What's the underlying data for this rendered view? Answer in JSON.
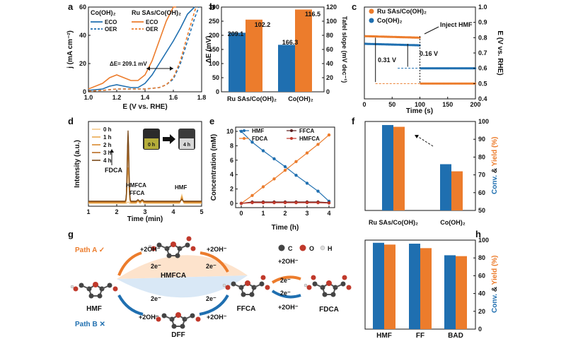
{
  "colors": {
    "blue": "#1f6fb0",
    "orange": "#ec7c2c",
    "red": "#c0392b",
    "dark": "#5a1f1f",
    "brown1": "#f3c98a",
    "brown2": "#e9a94f",
    "brown3": "#d8892f",
    "brown4": "#b86b22",
    "brown5": "#7a4a1a"
  },
  "panels": {
    "a": "a",
    "b": "b",
    "c": "c",
    "d": "d",
    "e": "e",
    "f": "f",
    "g": "g",
    "h": "h"
  },
  "chart_data": [
    {
      "id": "a",
      "type": "line",
      "xlabel": "E (V vs. RHE)",
      "ylabel": "j (mA cm⁻²)",
      "xlim": [
        1.0,
        1.8
      ],
      "ylim": [
        0,
        60
      ],
      "xticks": [
        "1.0",
        "1.2",
        "1.4",
        "1.6",
        "1.8"
      ],
      "yticks": [
        "0",
        "20",
        "40",
        "60"
      ],
      "legend_titles": [
        "Co(OH)₂",
        "Ru SAs/Co(OH)₂"
      ],
      "legend_labels": [
        "ECO",
        "OER",
        "ECO",
        "OER"
      ],
      "annotation": "ΔE= 209.1 mV",
      "series": [
        {
          "name": "Co(OH)₂ ECO",
          "x": [
            1.0,
            1.1,
            1.15,
            1.2,
            1.25,
            1.3,
            1.35,
            1.4,
            1.45,
            1.5,
            1.55,
            1.6,
            1.65,
            1.7,
            1.75
          ],
          "y": [
            1,
            2,
            4,
            5,
            4,
            3,
            3,
            6,
            12,
            20,
            28,
            36,
            45,
            55,
            62
          ]
        },
        {
          "name": "Co(OH)₂ OER",
          "x": [
            1.0,
            1.1,
            1.2,
            1.3,
            1.4,
            1.45,
            1.5,
            1.55,
            1.6,
            1.65,
            1.7,
            1.75,
            1.78
          ],
          "y": [
            0.5,
            1,
            2,
            2,
            2,
            2.5,
            3,
            5,
            9,
            20,
            36,
            52,
            60
          ]
        },
        {
          "name": "Ru SAs/Co(OH)₂ ECO",
          "x": [
            1.0,
            1.1,
            1.15,
            1.2,
            1.25,
            1.3,
            1.35,
            1.4,
            1.45,
            1.5,
            1.55,
            1.6,
            1.62
          ],
          "y": [
            2,
            6,
            10,
            12,
            10,
            8,
            8,
            12,
            22,
            36,
            50,
            60,
            62
          ]
        },
        {
          "name": "Ru SAs/Co(OH)₂ OER",
          "x": [
            1.0,
            1.1,
            1.2,
            1.3,
            1.4,
            1.45,
            1.5,
            1.55,
            1.6,
            1.65,
            1.7,
            1.76
          ],
          "y": [
            0.5,
            1,
            2,
            2,
            2,
            2.5,
            3,
            5,
            10,
            22,
            40,
            60
          ]
        }
      ]
    },
    {
      "id": "b",
      "type": "bar",
      "ylabel": "ΔE (mV)",
      "y2label": "Tafel slope (mV dec⁻¹)",
      "categories": [
        "Ru SAs/Co(OH)₂",
        "Co(OH)₂"
      ],
      "delta_e": [
        209.1,
        166.3
      ],
      "tafel": [
        102.2,
        116.5
      ],
      "delta_e_labels": [
        "209.1",
        "166.3"
      ],
      "tafel_labels": [
        "102.2",
        "116.5"
      ],
      "ylim": [
        0,
        300
      ],
      "y2lim": [
        0,
        120
      ],
      "yticks": [
        "0",
        "50",
        "100",
        "150",
        "200",
        "250",
        "300"
      ],
      "y2ticks": [
        "0",
        "20",
        "40",
        "60",
        "80",
        "100",
        "120"
      ]
    },
    {
      "id": "c",
      "type": "scatter",
      "xlabel": "Time (s)",
      "ylabel": "E (V vs. RHE)",
      "xlim": [
        0,
        200
      ],
      "ylim": [
        0.4,
        1.0
      ],
      "xticks": [
        "0",
        "50",
        "100",
        "150",
        "200"
      ],
      "yticks": [
        "0.4",
        "0.5",
        "0.6",
        "0.7",
        "0.8",
        "0.9",
        "1.0"
      ],
      "legend": [
        "Ru SAs/Co(OH)₂",
        "Co(OH)₂"
      ],
      "annotations": [
        "Inject HMF",
        "0.31 V",
        "0.16 V"
      ],
      "series": [
        {
          "name": "Ru SAs/Co(OH)₂",
          "before": 0.81,
          "after": 0.5
        },
        {
          "name": "Co(OH)₂",
          "before": 0.76,
          "after": 0.6
        }
      ],
      "inject_time": 100
    },
    {
      "id": "d",
      "type": "line",
      "xlabel": "Time (min)",
      "ylabel": "Intensity (a.u.)",
      "xlim": [
        1,
        5
      ],
      "xticks": [
        "1",
        "2",
        "3",
        "4",
        "5"
      ],
      "legend": [
        "0 h",
        "1 h",
        "2 h",
        "3 h",
        "4 h"
      ],
      "annotations": [
        "FDCA",
        "HMFCA",
        "FFCA",
        "HMF"
      ],
      "vial_labels": [
        "0 h",
        "4 h"
      ],
      "peaks": {
        "FDCA": 2.4,
        "HMFCA": 2.75,
        "FFCA": 2.9,
        "HMF": 4.3
      }
    },
    {
      "id": "e",
      "type": "line",
      "xlabel": "Time (h)",
      "ylabel": "Concentration (mM)",
      "xlim": [
        0,
        4
      ],
      "ylim": [
        0,
        10
      ],
      "xticks": [
        "0",
        "1",
        "2",
        "3",
        "4"
      ],
      "yticks": [
        "0",
        "2",
        "4",
        "6",
        "8",
        "10"
      ],
      "x": [
        0,
        0.5,
        1,
        1.5,
        2,
        2.5,
        3,
        3.5,
        4
      ],
      "series": [
        {
          "name": "HMF",
          "values": [
            10,
            8.5,
            7.3,
            6.2,
            5.1,
            3.9,
            2.8,
            1.7,
            0.3
          ]
        },
        {
          "name": "FDCA",
          "values": [
            0,
            1.1,
            2.3,
            3.4,
            4.6,
            5.8,
            7.0,
            8.2,
            9.5
          ]
        },
        {
          "name": "FFCA",
          "values": [
            0,
            0.2,
            0.2,
            0.2,
            0.2,
            0.2,
            0.2,
            0.2,
            0.1
          ]
        },
        {
          "name": "HMFCA",
          "values": [
            0,
            0.1,
            0.1,
            0.1,
            0.1,
            0.1,
            0.1,
            0.1,
            0.05
          ]
        }
      ]
    },
    {
      "id": "f",
      "type": "bar",
      "ylabel_conv": "Conv.",
      "ylabel_and": " & ",
      "ylabel_yield": "Yield (%)",
      "categories": [
        "Ru SAs/Co(OH)₂",
        "Co(OH)₂"
      ],
      "series": [
        {
          "name": "Conv.",
          "values": [
            98,
            76
          ]
        },
        {
          "name": "Yield",
          "values": [
            97,
            72
          ]
        }
      ],
      "ylim": [
        50,
        100
      ],
      "yticks": [
        "50",
        "60",
        "70",
        "80",
        "90",
        "100"
      ]
    },
    {
      "id": "h",
      "type": "bar",
      "ylabel_conv": "Conv.",
      "ylabel_and": " & ",
      "ylabel_yield": "Yield (%)",
      "categories": [
        "HMF",
        "FF",
        "BAD"
      ],
      "series": [
        {
          "name": "Conv.",
          "values": [
            97,
            96,
            83
          ]
        },
        {
          "name": "Yield",
          "values": [
            95,
            91,
            82
          ]
        }
      ],
      "ylim": [
        0,
        100
      ],
      "yticks": [
        "0",
        "20",
        "40",
        "60",
        "80",
        "100"
      ]
    }
  ],
  "scheme": {
    "path_a": "Path A ✓",
    "path_b": "Path B ✕",
    "molecules": [
      "HMF",
      "HMFCA",
      "FFCA",
      "FDCA",
      "DFF"
    ],
    "oh": "+2OH⁻",
    "e": "2e⁻",
    "atoms": [
      "C",
      "O",
      "H"
    ]
  }
}
